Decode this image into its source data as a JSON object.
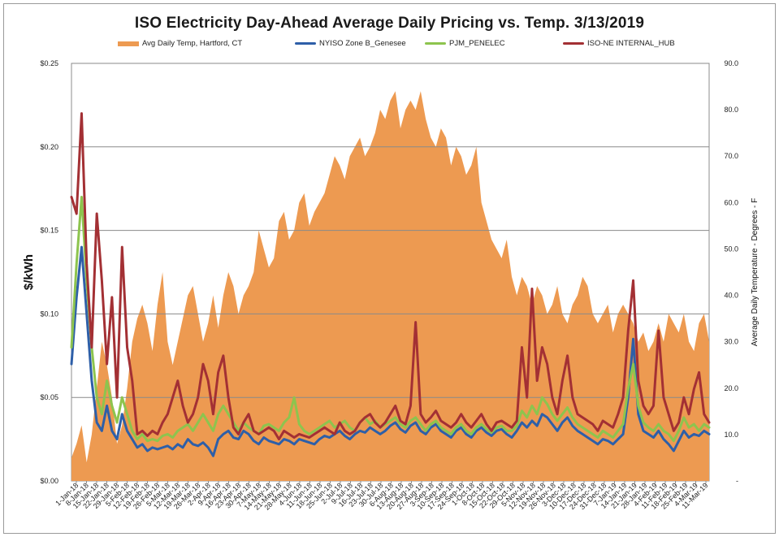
{
  "chart_data": {
    "type": "area+line",
    "title": "ISO Electricity Day-Ahead Average Daily Pricing vs. Temp. 3/13/2019",
    "ylabel": "$/kWh",
    "y2label": "Average Daily Temperature - Degrees - F",
    "ylim": [
      0,
      0.25
    ],
    "y2lim": [
      0,
      90
    ],
    "y_ticks": [
      "$0.00",
      "$0.05",
      "$0.10",
      "$0.15",
      "$0.20",
      "$0.25"
    ],
    "y_tick_values": [
      0,
      0.05,
      0.1,
      0.15,
      0.2,
      0.25
    ],
    "y2_ticks": [
      "-",
      "10.0",
      "20.0",
      "30.0",
      "40.0",
      "50.0",
      "60.0",
      "70.0",
      "80.0",
      "90.0"
    ],
    "y2_tick_values": [
      0,
      10,
      20,
      30,
      40,
      50,
      60,
      70,
      80,
      90
    ],
    "x_ticks": [
      "1-Jan-18",
      "8-Jan-18",
      "15-Jan-18",
      "22-Jan-18",
      "29-Jan-18",
      "5-Feb-18",
      "12-Feb-18",
      "19-Feb-18",
      "26-Feb-18",
      "5-Mar-18",
      "12-Mar-18",
      "19-Mar-18",
      "26-Mar-18",
      "2-Apr-18",
      "9-Apr-18",
      "16-Apr-18",
      "23-Apr-18",
      "30-Apr-18",
      "7-May-18",
      "14-May-18",
      "21-May-18",
      "28-May-18",
      "4-Jun-18",
      "11-Jun-18",
      "18-Jun-18",
      "25-Jun-18",
      "2-Jul-18",
      "9-Jul-18",
      "16-Jul-18",
      "23-Jul-18",
      "30-Jul-18",
      "6-Aug-18",
      "13-Aug-18",
      "20-Aug-18",
      "27-Aug-18",
      "3-Sep-18",
      "10-Sep-18",
      "17-Sep-18",
      "24-Sep-18",
      "1-Oct-18",
      "8-Oct-18",
      "15-Oct-18",
      "22-Oct-18",
      "29-Oct-18",
      "5-Nov-18",
      "12-Nov-18",
      "19-Nov-18",
      "26-Nov-18",
      "3-Dec-18",
      "10-Dec-18",
      "17-Dec-18",
      "24-Dec-18",
      "31-Dec-18",
      "7-Jan-19",
      "14-Jan-19",
      "21-Jan-19",
      "28-Jan-19",
      "4-Feb-19",
      "11-Feb-19",
      "18-Feb-19",
      "25-Feb-19",
      "4-Mar-19",
      "11-Mar-19"
    ],
    "grid": true,
    "legend_position": "top",
    "series": [
      {
        "name": "Avg Daily Temp, Hartford, CT",
        "axis": "y2",
        "kind": "area",
        "color": "#ED9A51",
        "values": [
          5,
          8,
          12,
          4,
          10,
          20,
          30,
          25,
          18,
          8,
          12,
          20,
          30,
          35,
          38,
          34,
          28,
          38,
          45,
          30,
          25,
          30,
          35,
          40,
          42,
          36,
          30,
          34,
          40,
          33,
          40,
          45,
          42,
          36,
          40,
          42,
          45,
          54,
          50,
          46,
          48,
          56,
          58,
          52,
          54,
          60,
          62,
          55,
          58,
          60,
          62,
          66,
          70,
          68,
          65,
          70,
          72,
          74,
          70,
          72,
          75,
          80,
          78,
          82,
          84,
          76,
          80,
          82,
          80,
          84,
          78,
          74,
          72,
          76,
          74,
          68,
          72,
          70,
          66,
          68,
          72,
          60,
          56,
          52,
          50,
          48,
          52,
          44,
          40,
          44,
          42,
          38,
          42,
          40,
          36,
          38,
          42,
          36,
          34,
          38,
          40,
          44,
          42,
          36,
          34,
          36,
          38,
          32,
          36,
          38,
          36,
          34,
          30,
          32,
          28,
          30,
          34,
          30,
          36,
          34,
          32,
          36,
          30,
          28,
          34,
          36,
          30
        ]
      },
      {
        "name": "NYISO Zone B_Genesee",
        "axis": "y",
        "kind": "line",
        "color": "#2E5FA8",
        "values": [
          0.07,
          0.11,
          0.14,
          0.1,
          0.06,
          0.035,
          0.03,
          0.045,
          0.03,
          0.025,
          0.04,
          0.03,
          0.025,
          0.02,
          0.022,
          0.018,
          0.02,
          0.019,
          0.02,
          0.021,
          0.019,
          0.022,
          0.02,
          0.025,
          0.022,
          0.021,
          0.023,
          0.02,
          0.015,
          0.025,
          0.028,
          0.03,
          0.026,
          0.025,
          0.03,
          0.028,
          0.024,
          0.022,
          0.026,
          0.024,
          0.023,
          0.022,
          0.025,
          0.024,
          0.022,
          0.025,
          0.024,
          0.023,
          0.022,
          0.025,
          0.027,
          0.026,
          0.028,
          0.03,
          0.027,
          0.025,
          0.028,
          0.03,
          0.029,
          0.032,
          0.03,
          0.028,
          0.03,
          0.033,
          0.035,
          0.031,
          0.029,
          0.033,
          0.035,
          0.03,
          0.028,
          0.032,
          0.034,
          0.03,
          0.028,
          0.026,
          0.03,
          0.032,
          0.028,
          0.026,
          0.03,
          0.032,
          0.029,
          0.027,
          0.03,
          0.031,
          0.028,
          0.026,
          0.03,
          0.035,
          0.032,
          0.036,
          0.033,
          0.04,
          0.038,
          0.034,
          0.03,
          0.035,
          0.038,
          0.033,
          0.03,
          0.028,
          0.026,
          0.024,
          0.022,
          0.025,
          0.024,
          0.022,
          0.025,
          0.028,
          0.05,
          0.085,
          0.04,
          0.03,
          0.028,
          0.026,
          0.03,
          0.025,
          0.022,
          0.018,
          0.024,
          0.03,
          0.026,
          0.028,
          0.027,
          0.03,
          0.028
        ]
      },
      {
        "name": "PJM_PENELEC",
        "axis": "y",
        "kind": "line",
        "color": "#8DC44E",
        "values": [
          0.08,
          0.13,
          0.17,
          0.12,
          0.08,
          0.05,
          0.04,
          0.06,
          0.045,
          0.035,
          0.05,
          0.04,
          0.03,
          0.025,
          0.028,
          0.024,
          0.025,
          0.024,
          0.027,
          0.028,
          0.026,
          0.03,
          0.032,
          0.034,
          0.03,
          0.035,
          0.04,
          0.035,
          0.03,
          0.04,
          0.045,
          0.04,
          0.035,
          0.03,
          0.035,
          0.032,
          0.03,
          0.028,
          0.033,
          0.034,
          0.032,
          0.03,
          0.035,
          0.038,
          0.05,
          0.034,
          0.03,
          0.028,
          0.03,
          0.032,
          0.034,
          0.036,
          0.032,
          0.034,
          0.036,
          0.032,
          0.03,
          0.035,
          0.038,
          0.034,
          0.036,
          0.032,
          0.034,
          0.036,
          0.038,
          0.034,
          0.032,
          0.036,
          0.038,
          0.034,
          0.03,
          0.034,
          0.036,
          0.032,
          0.03,
          0.028,
          0.032,
          0.034,
          0.03,
          0.028,
          0.032,
          0.034,
          0.031,
          0.029,
          0.032,
          0.033,
          0.03,
          0.03,
          0.033,
          0.042,
          0.038,
          0.045,
          0.04,
          0.05,
          0.046,
          0.04,
          0.036,
          0.04,
          0.044,
          0.038,
          0.034,
          0.032,
          0.03,
          0.028,
          0.026,
          0.03,
          0.028,
          0.026,
          0.03,
          0.034,
          0.055,
          0.07,
          0.045,
          0.035,
          0.032,
          0.03,
          0.034,
          0.03,
          0.028,
          0.024,
          0.03,
          0.038,
          0.032,
          0.034,
          0.03,
          0.034,
          0.032
        ]
      },
      {
        "name": "ISO-NE INTERNAL_HUB",
        "axis": "y",
        "kind": "line",
        "color": "#A33034",
        "values": [
          0.17,
          0.16,
          0.22,
          0.13,
          0.08,
          0.16,
          0.12,
          0.07,
          0.11,
          0.05,
          0.14,
          0.08,
          0.06,
          0.028,
          0.03,
          0.027,
          0.03,
          0.028,
          0.035,
          0.04,
          0.05,
          0.06,
          0.045,
          0.035,
          0.04,
          0.05,
          0.07,
          0.06,
          0.04,
          0.065,
          0.075,
          0.05,
          0.032,
          0.028,
          0.035,
          0.04,
          0.03,
          0.028,
          0.03,
          0.032,
          0.03,
          0.025,
          0.03,
          0.028,
          0.026,
          0.028,
          0.027,
          0.026,
          0.028,
          0.03,
          0.032,
          0.03,
          0.028,
          0.035,
          0.03,
          0.028,
          0.03,
          0.035,
          0.038,
          0.04,
          0.035,
          0.032,
          0.035,
          0.04,
          0.045,
          0.036,
          0.034,
          0.045,
          0.095,
          0.04,
          0.035,
          0.038,
          0.042,
          0.036,
          0.034,
          0.032,
          0.035,
          0.04,
          0.035,
          0.032,
          0.036,
          0.04,
          0.034,
          0.03,
          0.035,
          0.036,
          0.034,
          0.032,
          0.036,
          0.08,
          0.05,
          0.115,
          0.06,
          0.08,
          0.07,
          0.05,
          0.04,
          0.06,
          0.075,
          0.05,
          0.04,
          0.038,
          0.036,
          0.034,
          0.03,
          0.036,
          0.034,
          0.032,
          0.04,
          0.05,
          0.09,
          0.12,
          0.06,
          0.045,
          0.04,
          0.045,
          0.09,
          0.05,
          0.04,
          0.03,
          0.035,
          0.05,
          0.04,
          0.055,
          0.065,
          0.04,
          0.035
        ]
      }
    ]
  }
}
